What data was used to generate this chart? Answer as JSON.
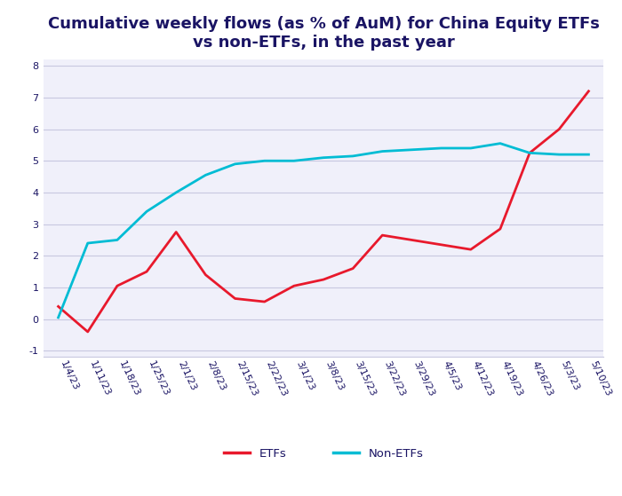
{
  "title": "Cumulative weekly flows (as % of AuM) for China Equity ETFs\nvs non-ETFs, in the past year",
  "x_labels": [
    "1/4/23",
    "1/11/23",
    "1/18/23",
    "1/25/23",
    "2/1/23",
    "2/8/23",
    "2/15/23",
    "2/22/23",
    "3/1/23",
    "3/8/23",
    "3/15/23",
    "3/22/23",
    "3/29/23",
    "4/5/23",
    "4/12/23",
    "4/19/23",
    "4/26/23",
    "5/3/23",
    "5/10/23"
  ],
  "etfs": [
    0.4,
    -0.4,
    1.05,
    1.5,
    2.75,
    1.4,
    0.65,
    0.55,
    1.05,
    1.25,
    1.6,
    2.65,
    2.5,
    2.35,
    2.2,
    2.85,
    5.25,
    6.0,
    7.2
  ],
  "non_etfs": [
    0.05,
    2.4,
    2.5,
    3.4,
    4.0,
    4.55,
    4.9,
    5.0,
    5.0,
    5.1,
    5.15,
    5.3,
    5.35,
    5.4,
    5.4,
    5.55,
    5.25,
    5.2,
    5.2
  ],
  "etf_color": "#e8192c",
  "non_etf_color": "#00bcd4",
  "title_color": "#1a1464",
  "tick_color": "#1a1464",
  "grid_color": "#c8c8e0",
  "background_color": "#ffffff",
  "plot_bg_color": "#f0f0fa",
  "ylim": [
    -1.2,
    8.2
  ],
  "yticks": [
    -1,
    0,
    1,
    2,
    3,
    4,
    5,
    6,
    7,
    8
  ],
  "legend_etf": "ETFs",
  "legend_non_etf": "Non-ETFs",
  "line_width": 2.0,
  "title_fontsize": 13,
  "tick_fontsize": 8,
  "legend_fontsize": 9.5
}
